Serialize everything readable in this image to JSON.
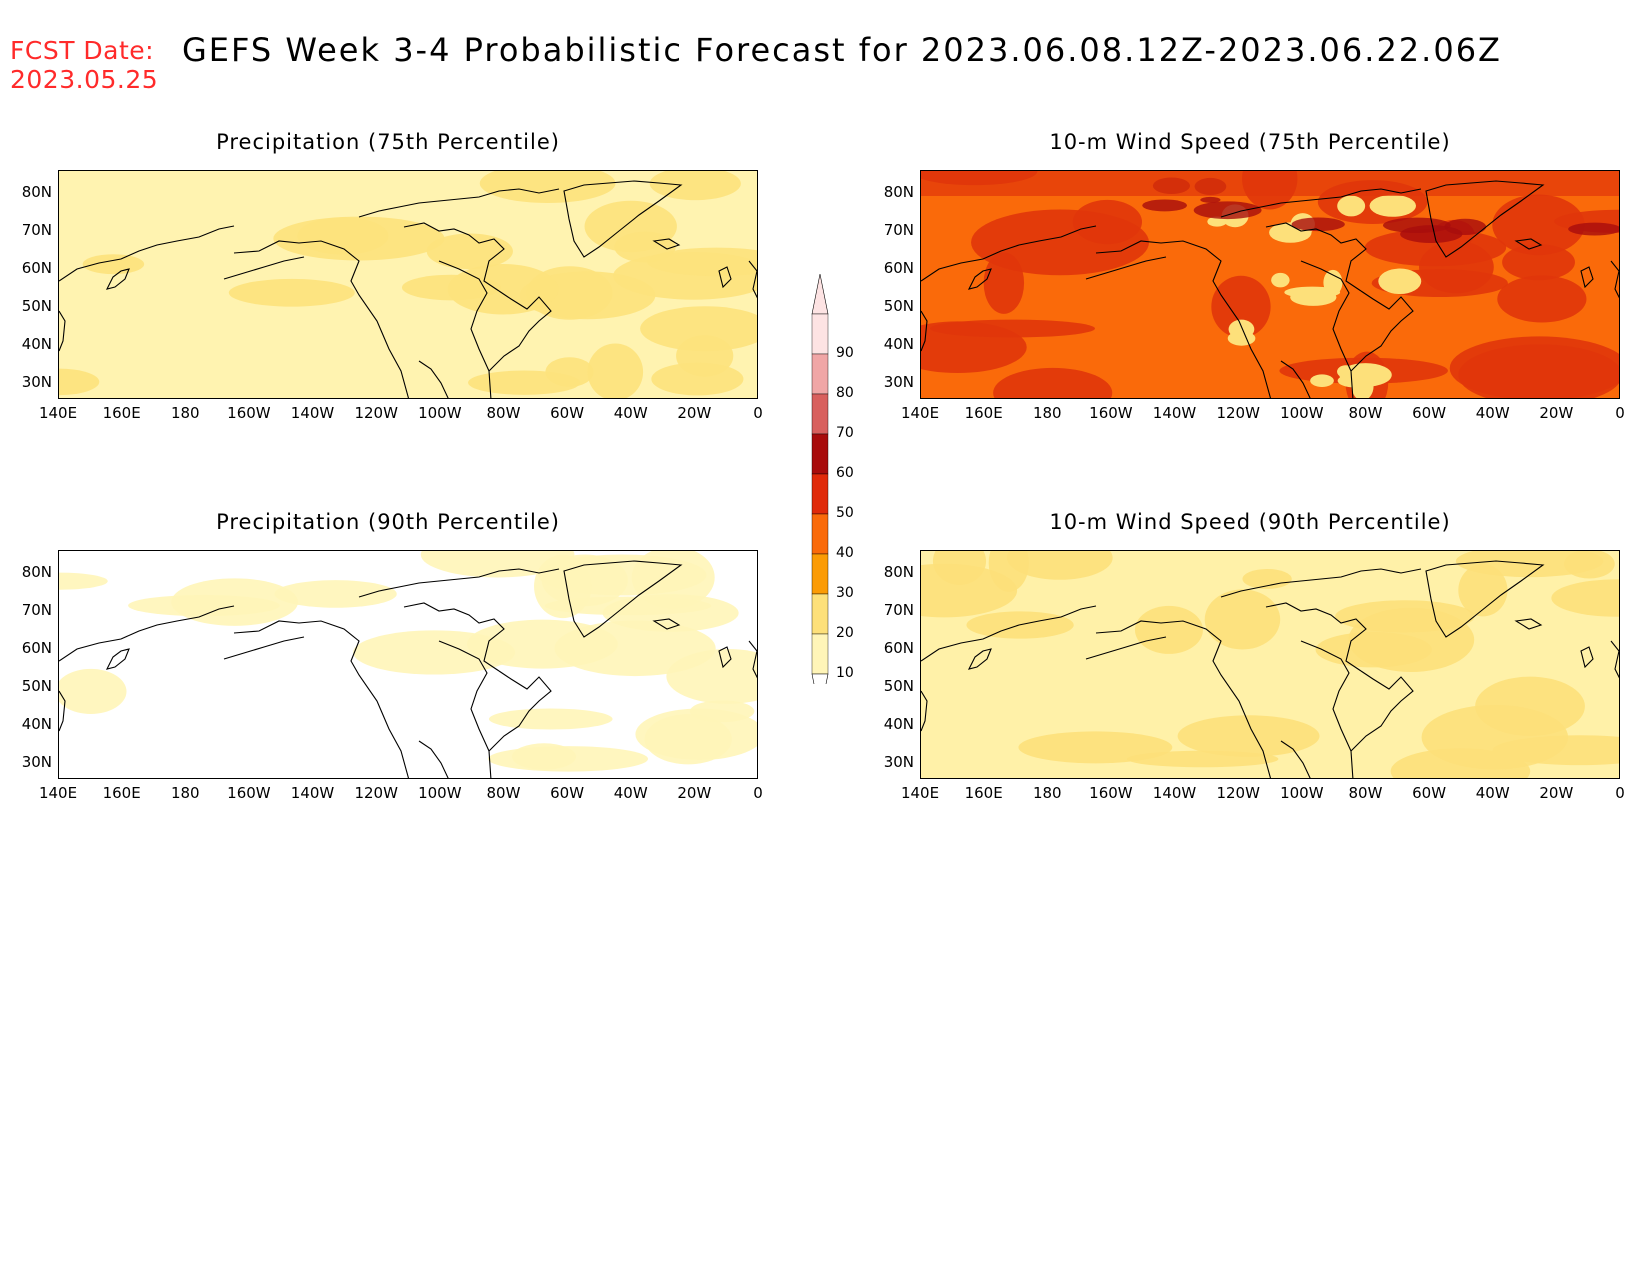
{
  "header": {
    "fcst_label": "FCST Date:",
    "fcst_date": "2023.05.25",
    "title": "GEFS Week 3-4 Probabilistic Forecast for 2023.06.08.12Z-2023.06.22.06Z"
  },
  "axes": {
    "y_labels": [
      "80N",
      "70N",
      "60N",
      "50N",
      "40N",
      "30N"
    ],
    "x_labels": [
      "140E",
      "160E",
      "180",
      "160W",
      "140W",
      "120W",
      "100W",
      "80W",
      "60W",
      "40W",
      "20W",
      "0"
    ]
  },
  "colorbar": {
    "levels": [
      "90",
      "80",
      "70",
      "60",
      "50",
      "40",
      "30",
      "20",
      "10"
    ],
    "colors": [
      "#fde3e3",
      "#f0a6a6",
      "#d8605e",
      "#a80c0c",
      "#e02a0a",
      "#fa6a0a",
      "#fb9b05",
      "#fde07a",
      "#fff5b8"
    ]
  },
  "panels": [
    {
      "title": "Precipitation (75th Percentile)",
      "base_color": "#fff3b0",
      "accent": "#fde27c"
    },
    {
      "title": "10-m Wind Speed (75th Percentile)",
      "base_color": "#fa6a0a",
      "accent": "#e0360a"
    },
    {
      "title": "Precipitation (90th Percentile)",
      "base_color": "#ffffff",
      "accent": "#fff5b8"
    },
    {
      "title": "10-m Wind Speed (90th Percentile)",
      "base_color": "#fff1a8",
      "accent": "#fde07a"
    }
  ]
}
